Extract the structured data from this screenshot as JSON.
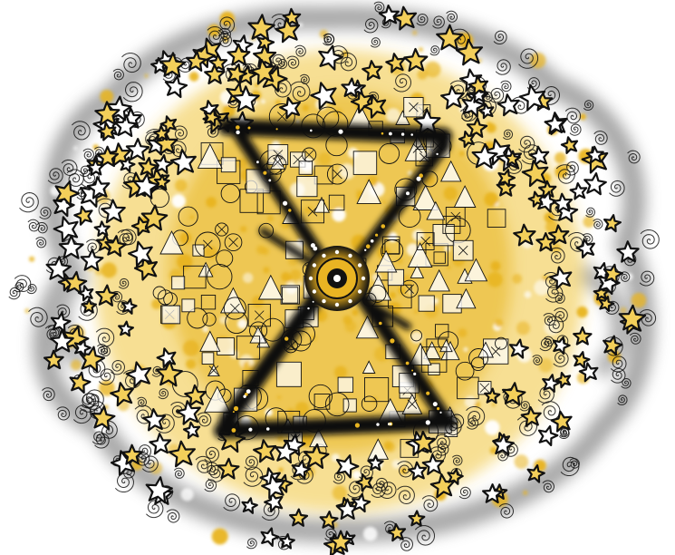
{
  "artwork": {
    "palette": {
      "background": "#ffffff",
      "gold": "#e8b420",
      "gold_light": "#f3cf5a",
      "ink": "#111111",
      "smoke": "#8c8c8c"
    },
    "motifs": [
      "spiral",
      "star",
      "square",
      "circle",
      "triangle",
      "x-cross",
      "hourglass-frame",
      "central-medallion"
    ]
  }
}
